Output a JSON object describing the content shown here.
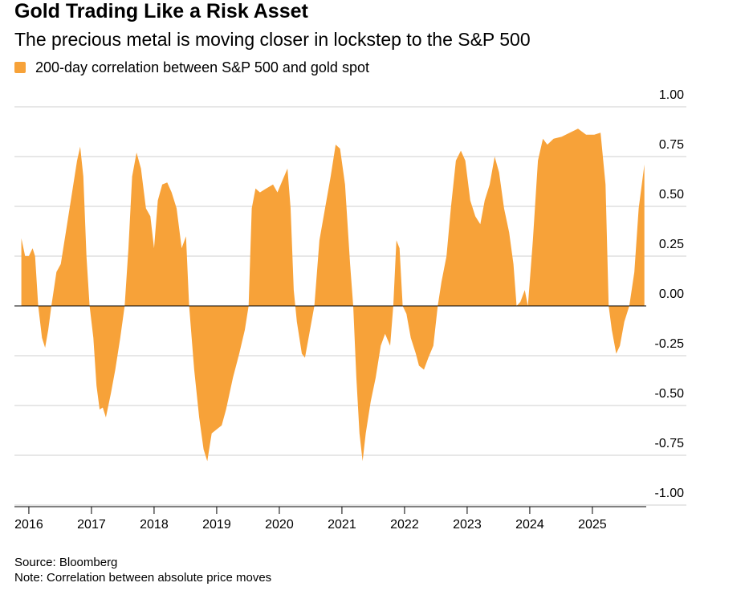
{
  "chart_data": {
    "type": "area",
    "title": "Gold Trading Like a Risk Asset",
    "subtitle": "The precious metal is moving closer in lockstep to the S&P 500",
    "source": "Source: Bloomberg",
    "note": "Note: Correlation between absolute price moves",
    "x": [
      2015.88,
      2015.94,
      2016.0,
      2016.06,
      2016.1,
      2016.15,
      2016.21,
      2016.26,
      2016.31,
      2016.36,
      2016.44,
      2016.51,
      2016.59,
      2016.69,
      2016.77,
      2016.82,
      2016.87,
      2016.92,
      2016.97,
      2017.03,
      2017.08,
      2017.13,
      2017.18,
      2017.23,
      2017.31,
      2017.38,
      2017.46,
      2017.53,
      2017.59,
      2017.65,
      2017.72,
      2017.79,
      2017.87,
      2017.94,
      2018.0,
      2018.06,
      2018.13,
      2018.21,
      2018.28,
      2018.36,
      2018.44,
      2018.51,
      2018.56,
      2018.64,
      2018.72,
      2018.79,
      2018.85,
      2018.92,
      2019.0,
      2019.08,
      2019.15,
      2019.26,
      2019.36,
      2019.45,
      2019.51,
      2019.56,
      2019.62,
      2019.69,
      2019.79,
      2019.9,
      2019.97,
      2020.05,
      2020.13,
      2020.18,
      2020.23,
      2020.28,
      2020.36,
      2020.41,
      2020.49,
      2020.56,
      2020.64,
      2020.73,
      2020.82,
      2020.9,
      2020.97,
      2021.05,
      2021.13,
      2021.18,
      2021.23,
      2021.28,
      2021.33,
      2021.38,
      2021.46,
      2021.54,
      2021.62,
      2021.69,
      2021.77,
      2021.82,
      2021.87,
      2021.92,
      2021.97,
      2022.03,
      2022.1,
      2022.18,
      2022.23,
      2022.31,
      2022.38,
      2022.46,
      2022.53,
      2022.59,
      2022.67,
      2022.74,
      2022.82,
      2022.9,
      2022.97,
      2023.05,
      2023.13,
      2023.21,
      2023.28,
      2023.36,
      2023.44,
      2023.51,
      2023.59,
      2023.67,
      2023.74,
      2023.79,
      2023.85,
      2023.92,
      2023.97,
      2024.05,
      2024.13,
      2024.21,
      2024.28,
      2024.38,
      2024.51,
      2024.64,
      2024.77,
      2024.9,
      2025.03,
      2025.13,
      2025.21,
      2025.26,
      2025.31,
      2025.38,
      2025.44,
      2025.51,
      2025.59,
      2025.67,
      2025.74,
      2025.83
    ],
    "series": [
      {
        "name": "200-day correlation between S&P 500 and gold spot",
        "color": "#f7a239",
        "values": [
          0.34,
          0.25,
          0.25,
          0.29,
          0.25,
          0.0,
          -0.16,
          -0.21,
          -0.12,
          0.0,
          0.17,
          0.21,
          0.37,
          0.57,
          0.73,
          0.8,
          0.65,
          0.25,
          0.0,
          -0.16,
          -0.4,
          -0.52,
          -0.51,
          -0.56,
          -0.44,
          -0.32,
          -0.16,
          0.0,
          0.29,
          0.65,
          0.77,
          0.69,
          0.49,
          0.45,
          0.29,
          0.53,
          0.61,
          0.62,
          0.57,
          0.49,
          0.29,
          0.35,
          0.0,
          -0.32,
          -0.56,
          -0.72,
          -0.78,
          -0.64,
          -0.62,
          -0.6,
          -0.52,
          -0.36,
          -0.24,
          -0.12,
          0.0,
          0.49,
          0.59,
          0.57,
          0.59,
          0.61,
          0.57,
          0.63,
          0.69,
          0.49,
          0.08,
          -0.08,
          -0.24,
          -0.26,
          -0.12,
          0.0,
          0.33,
          0.49,
          0.65,
          0.81,
          0.79,
          0.61,
          0.21,
          0.0,
          -0.36,
          -0.64,
          -0.78,
          -0.64,
          -0.48,
          -0.36,
          -0.2,
          -0.14,
          -0.2,
          0.0,
          0.33,
          0.29,
          0.0,
          -0.04,
          -0.16,
          -0.24,
          -0.3,
          -0.32,
          -0.26,
          -0.2,
          0.0,
          0.12,
          0.25,
          0.49,
          0.73,
          0.78,
          0.73,
          0.53,
          0.45,
          0.41,
          0.53,
          0.61,
          0.75,
          0.67,
          0.49,
          0.37,
          0.21,
          0.0,
          0.02,
          0.08,
          0.0,
          0.33,
          0.73,
          0.84,
          0.81,
          0.84,
          0.85,
          0.87,
          0.89,
          0.86,
          0.86,
          0.87,
          0.61,
          0.0,
          -0.12,
          -0.24,
          -0.2,
          -0.08,
          0.0,
          0.17,
          0.49,
          0.71
        ]
      }
    ],
    "xlim": [
      2015.77,
      2025.86
    ],
    "xticks": [
      2016,
      2017,
      2018,
      2019,
      2020,
      2021,
      2022,
      2023,
      2024,
      2025
    ],
    "ylim": [
      -1,
      1
    ],
    "yticks": [
      {
        "value": -1,
        "label": "-1.00"
      },
      -0.75,
      {
        "value": -0.5,
        "label": "-0.50"
      },
      -0.25,
      {
        "value": 0,
        "label": "0.00"
      },
      0.25,
      {
        "value": 0.5,
        "label": "0.50"
      },
      0.75,
      {
        "value": 1,
        "label": "1.00"
      }
    ],
    "grid": true
  }
}
